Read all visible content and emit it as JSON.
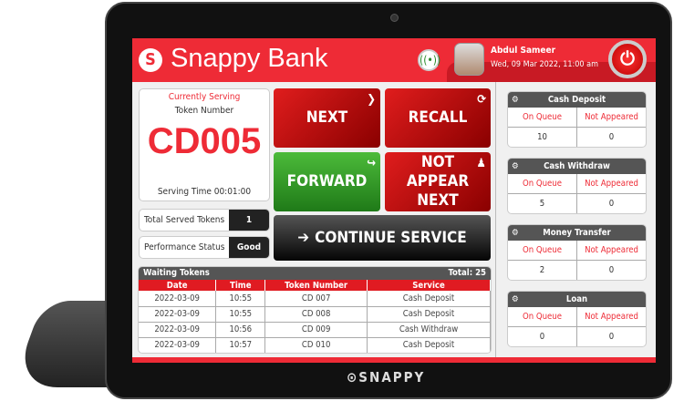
{
  "header": {
    "brand": "Snappy Bank",
    "user_name": "Abdul Sameer",
    "datetime": "Wed, 09 Mar 2022, 11:00 am"
  },
  "serving": {
    "label": "Currently Serving",
    "sub": "Token Number",
    "token": "CD005",
    "serving_time": "Serving Time 00:01:00"
  },
  "stats": [
    {
      "label": "Total Served Tokens",
      "value": "1"
    },
    {
      "label": "Performance Status",
      "value": "Good"
    }
  ],
  "buttons": {
    "next": "NEXT",
    "recall": "RECALL",
    "forward": "FORWARD",
    "not_appear": "NOT APPEAR NEXT",
    "continue": "CONTINUE SERVICE"
  },
  "waiting": {
    "title": "Waiting Tokens",
    "total": "Total: 25",
    "columns": [
      "Date",
      "Time",
      "Token Number",
      "Service"
    ],
    "rows": [
      [
        "2022-03-09",
        "10:55",
        "CD 007",
        "Cash Deposit"
      ],
      [
        "2022-03-09",
        "10:55",
        "CD 008",
        "Cash Deposit"
      ],
      [
        "2022-03-09",
        "10:56",
        "CD 009",
        "Cash Withdraw"
      ],
      [
        "2022-03-09",
        "10:57",
        "CD 010",
        "Cash Deposit"
      ]
    ]
  },
  "services": [
    {
      "name": "Cash Deposit",
      "on_queue_label": "On Queue",
      "not_appeared_label": "Not Appeared",
      "on_queue": "10",
      "not_appeared": "0"
    },
    {
      "name": "Cash Withdraw",
      "on_queue_label": "On Queue",
      "not_appeared_label": "Not Appeared",
      "on_queue": "5",
      "not_appeared": "0"
    },
    {
      "name": "Money Transfer",
      "on_queue_label": "On Queue",
      "not_appeared_label": "Not Appeared",
      "on_queue": "2",
      "not_appeared": "0"
    },
    {
      "name": "Loan",
      "on_queue_label": "On Queue",
      "not_appeared_label": "Not Appeared",
      "on_queue": "0",
      "not_appeared": "0"
    }
  ],
  "footer": {
    "logo": "snappy"
  },
  "colors": {
    "accent": "#ee2b36",
    "forward": "#2f9a25",
    "dark": "#555555"
  }
}
